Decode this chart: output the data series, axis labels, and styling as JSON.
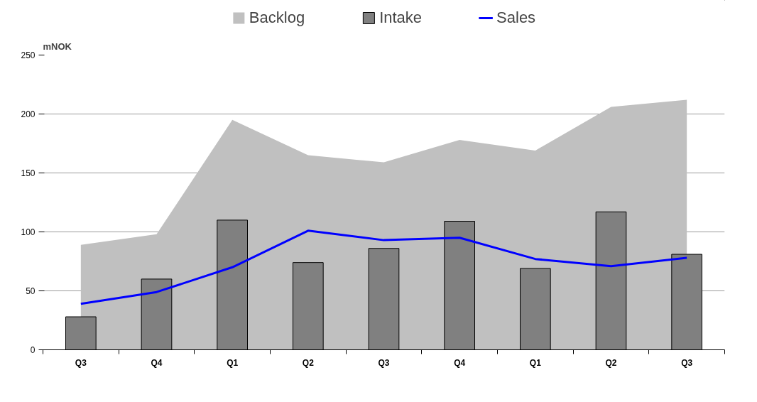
{
  "chart_data": {
    "type": "bar",
    "ylabel": "mNOK",
    "categories": [
      "Q3",
      "Q4",
      "Q1",
      "Q2",
      "Q3",
      "Q4",
      "Q1",
      "Q2",
      "Q3"
    ],
    "series": [
      {
        "name": "Backlog",
        "type": "area",
        "color": "#c0c0c0",
        "values": [
          89,
          98,
          195,
          165,
          159,
          178,
          169,
          206,
          212
        ]
      },
      {
        "name": "Intake",
        "color": "#808080",
        "values": [
          28,
          60,
          110,
          74,
          86,
          109,
          69,
          117,
          81
        ]
      },
      {
        "name": "Sales",
        "type": "line",
        "color": "#0000ff",
        "values": [
          39,
          49,
          70,
          101,
          93,
          95,
          77,
          71,
          78
        ]
      }
    ],
    "ylim": [
      0,
      250
    ],
    "yticks": [
      0,
      50,
      100,
      150,
      200,
      250
    ],
    "grid": "y",
    "legend": "top"
  }
}
